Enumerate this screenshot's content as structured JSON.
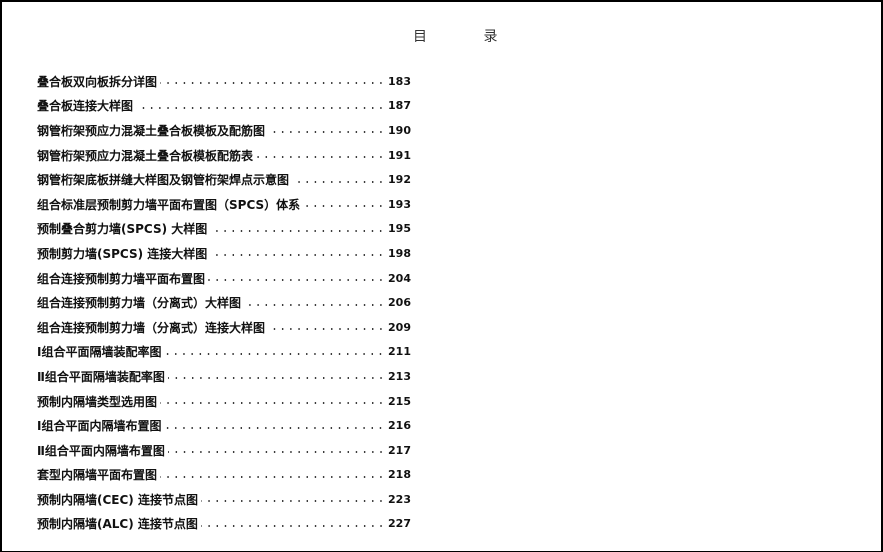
{
  "title": "目 录",
  "entries": [
    {
      "label": "叠合板双向板拆分详图",
      "page": "183"
    },
    {
      "label": "叠合板连接大样图",
      "page": "187"
    },
    {
      "label": "钢管桁架预应力混凝土叠合板模板及配筋图",
      "page": "190"
    },
    {
      "label": "钢管桁架预应力混凝土叠合板模板配筋表",
      "page": "191"
    },
    {
      "label": "钢管桁架底板拼缝大样图及钢管桁架焊点示意图",
      "page": "192"
    },
    {
      "label": "组合标准层预制剪力墙平面布置图（SPCS）体系",
      "page": "193"
    },
    {
      "label": "预制叠合剪力墙(SPCS) 大样图",
      "page": "195"
    },
    {
      "label": "预制剪力墙(SPCS) 连接大样图",
      "page": "198"
    },
    {
      "label": "组合连接预制剪力墙平面布置图",
      "page": "204"
    },
    {
      "label": "组合连接预制剪力墙（分离式）大样图",
      "page": "206"
    },
    {
      "label": "组合连接预制剪力墙（分离式）连接大样图",
      "page": "209"
    },
    {
      "label": "Ⅰ组合平面隔墙装配率图",
      "page": "211"
    },
    {
      "label": "Ⅱ组合平面隔墙装配率图",
      "page": "213"
    },
    {
      "label": "预制内隔墙类型选用图",
      "page": "215"
    },
    {
      "label": "Ⅰ组合平面内隔墙布置图",
      "page": "216"
    },
    {
      "label": "Ⅱ组合平面内隔墙布置图",
      "page": "217"
    },
    {
      "label": "套型内隔墙平面布置图",
      "page": "218"
    },
    {
      "label": "预制内隔墙(CEC) 连接节点图",
      "page": "223"
    },
    {
      "label": "预制内隔墙(ALC) 连接节点图",
      "page": "227"
    }
  ]
}
